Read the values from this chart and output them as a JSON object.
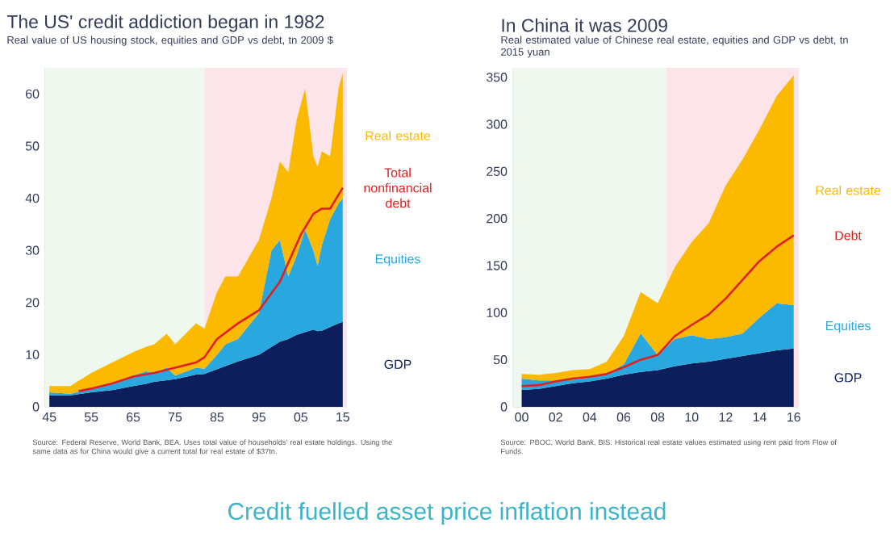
{
  "chart_data": [
    {
      "type": "area",
      "stacked": true,
      "title": "The US' credit addiction began in 1982",
      "subtitle": "Real value of US housing stock, equities and GDP vs debt, tn 2009 $",
      "x": [
        1945,
        1950,
        1955,
        1960,
        1965,
        1968,
        1970,
        1973,
        1975,
        1980,
        1982,
        1985,
        1987,
        1990,
        1995,
        1998,
        2000,
        2002,
        2004,
        2006,
        2008,
        2009,
        2010,
        2012,
        2014,
        2015
      ],
      "series": [
        {
          "name": "GDP",
          "color": "#0c1f5c",
          "values": [
            2.2,
            2.2,
            2.8,
            3.2,
            4.0,
            4.4,
            4.8,
            5.1,
            5.3,
            6.2,
            6.3,
            7.2,
            7.8,
            8.7,
            10.0,
            11.5,
            12.5,
            13.0,
            13.8,
            14.3,
            14.8,
            14.5,
            14.6,
            15.3,
            16.0,
            16.3
          ]
        },
        {
          "name": "Equities",
          "color": "#29a8e0",
          "values": [
            0.6,
            0.3,
            0.7,
            1.3,
            2.0,
            2.4,
            1.7,
            2.4,
            0.7,
            1.3,
            1.0,
            2.8,
            4.2,
            4.3,
            8.0,
            18.5,
            19.5,
            12.0,
            15.2,
            19.7,
            15.2,
            12.5,
            16.4,
            20.7,
            23.0,
            23.7
          ]
        },
        {
          "name": "Real estate",
          "color": "#fbb900",
          "values": [
            1.2,
            1.5,
            3.0,
            4.0,
            4.5,
            4.7,
            5.5,
            6.5,
            6.0,
            8.5,
            7.7,
            12.0,
            13.0,
            12.0,
            14.0,
            10.0,
            15.0,
            20.0,
            26.0,
            27.0,
            18.0,
            19.0,
            18.0,
            12.0,
            22.0,
            24.0
          ]
        },
        {
          "name": "Total nonfinancial debt",
          "type": "line",
          "color": "#e02020",
          "x": [
            1952,
            1955,
            1960,
            1965,
            1970,
            1975,
            1980,
            1982,
            1985,
            1990,
            1995,
            2000,
            2005,
            2008,
            2010,
            2012,
            2015
          ],
          "values": [
            3,
            3.5,
            4.5,
            5.8,
            6.5,
            7.5,
            8.5,
            9.5,
            13,
            16,
            18.5,
            24,
            33,
            37,
            38,
            38,
            42
          ]
        }
      ],
      "xlim": [
        1944,
        2016
      ],
      "ylim": [
        0,
        65
      ],
      "xticks": [
        {
          "value": 1945,
          "label": "45"
        },
        {
          "value": 1955,
          "label": "55"
        },
        {
          "value": 1965,
          "label": "65"
        },
        {
          "value": 1975,
          "label": "75"
        },
        {
          "value": 1985,
          "label": "85"
        },
        {
          "value": 1995,
          "label": "95"
        },
        {
          "value": 2005,
          "label": "05"
        },
        {
          "value": 2015,
          "label": "15"
        }
      ],
      "yticks": [
        0,
        10,
        20,
        30,
        40,
        50,
        60
      ],
      "bands": [
        {
          "axis": "x",
          "from": 1944,
          "to": 1982,
          "color": "#eef8ee"
        },
        {
          "axis": "x",
          "from": 1982,
          "to": 2016,
          "color": "#fde4e8"
        }
      ],
      "annotations": [
        "Source: Federal Reserve, World Bank, BEA. Uses total value of households' real estate holdings. Using the same data as for China would give a current total for real estate of $37tn."
      ]
    },
    {
      "type": "area",
      "stacked": true,
      "title": "In China it was 2009",
      "subtitle": "Real estimated value of Chinese real estate, equities and GDP vs debt, tn 2015 yuan",
      "x": [
        2000,
        2001,
        2002,
        2003,
        2004,
        2005,
        2006,
        2007,
        2008,
        2009,
        2010,
        2011,
        2012,
        2013,
        2014,
        2015,
        2016
      ],
      "series": [
        {
          "name": "GDP",
          "color": "#0c1f5c",
          "values": [
            18,
            19,
            22,
            25,
            27,
            30,
            34,
            37,
            39,
            43,
            46,
            48,
            51,
            54,
            57,
            60,
            62
          ]
        },
        {
          "name": "Equities",
          "color": "#29a8e0",
          "values": [
            12,
            9,
            6,
            4,
            4,
            5,
            11,
            41,
            16,
            29,
            30,
            24,
            23,
            24,
            38,
            50,
            46
          ]
        },
        {
          "name": "Real estate",
          "color": "#fbb900",
          "values": [
            5,
            6,
            8,
            10,
            9,
            13,
            30,
            44,
            55,
            76,
            99,
            123,
            161,
            185,
            200,
            220,
            244
          ]
        },
        {
          "name": "Debt",
          "type": "line",
          "color": "#e02020",
          "values": [
            22,
            23,
            27,
            30,
            32,
            35,
            42,
            50,
            55,
            75,
            87,
            98,
            115,
            135,
            155,
            170,
            182
          ]
        }
      ],
      "xlim": [
        1999.5,
        2016.3
      ],
      "ylim": [
        0,
        360
      ],
      "xticks": [
        {
          "value": 2000,
          "label": "00"
        },
        {
          "value": 2002,
          "label": "02"
        },
        {
          "value": 2004,
          "label": "04"
        },
        {
          "value": 2006,
          "label": "06"
        },
        {
          "value": 2008,
          "label": "08"
        },
        {
          "value": 2010,
          "label": "10"
        },
        {
          "value": 2012,
          "label": "12"
        },
        {
          "value": 2014,
          "label": "14"
        },
        {
          "value": 2016,
          "label": "16"
        }
      ],
      "yticks": [
        0,
        50,
        100,
        150,
        200,
        250,
        300,
        350
      ],
      "bands": [
        {
          "axis": "x",
          "from": 1999.5,
          "to": 2008.5,
          "color": "#eef8ee"
        },
        {
          "axis": "x",
          "from": 2008.5,
          "to": 2016.3,
          "color": "#fde4e8"
        }
      ],
      "annotations": [
        "Source: PBOC, World Bank, BIS. Historical real estate values estimated using rent paid from Flow of Funds.",
        "Credit fuelled asset price inflation instead"
      ]
    }
  ]
}
